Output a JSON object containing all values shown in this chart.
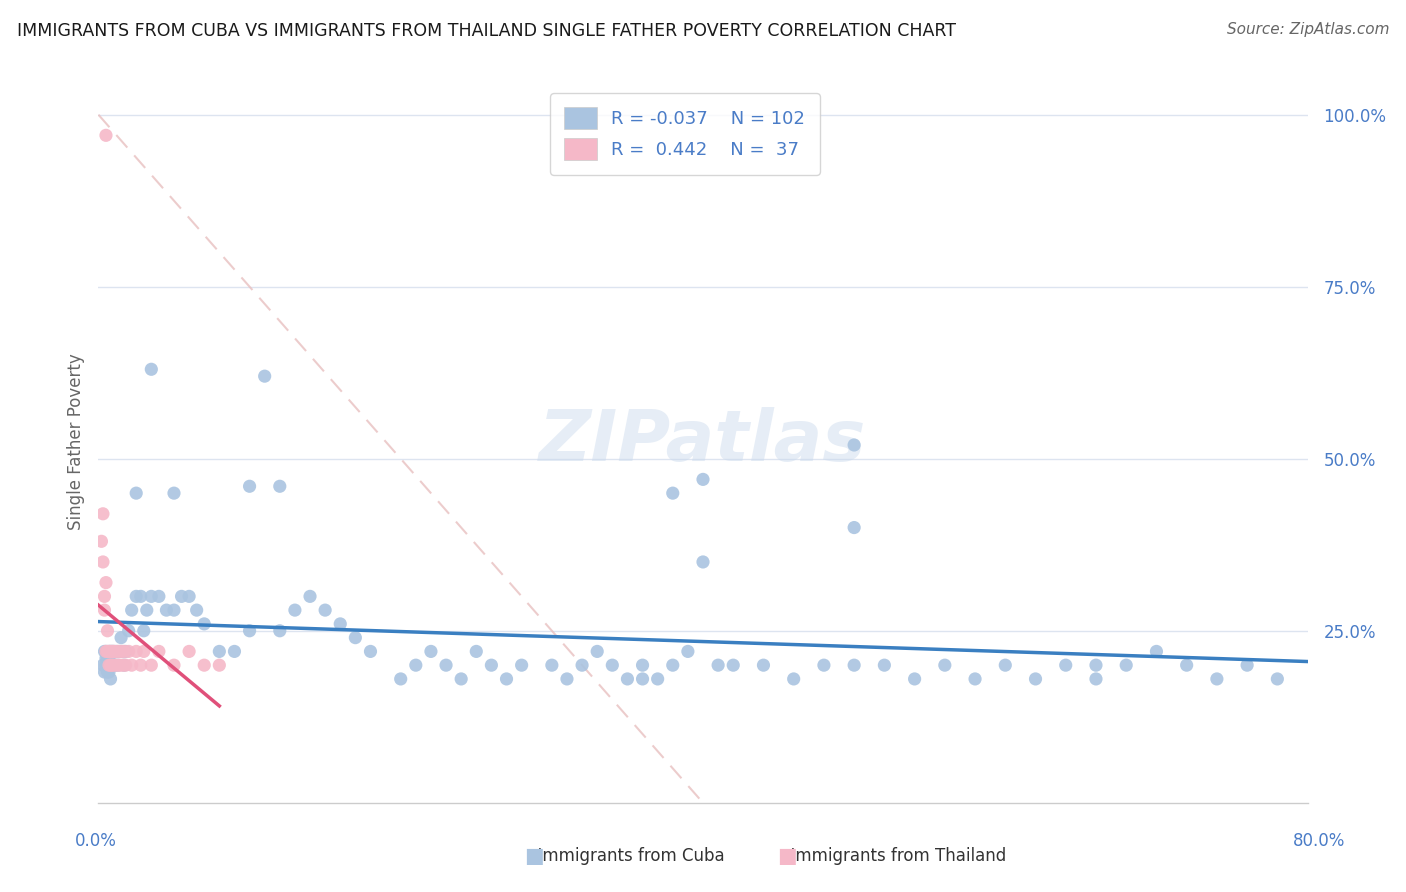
{
  "title": "IMMIGRANTS FROM CUBA VS IMMIGRANTS FROM THAILAND SINGLE FATHER POVERTY CORRELATION CHART",
  "source": "Source: ZipAtlas.com",
  "ylabel": "Single Father Poverty",
  "xlim": [
    0.0,
    0.8
  ],
  "ylim": [
    0.0,
    1.05
  ],
  "legend_r_cuba": "-0.037",
  "legend_n_cuba": "102",
  "legend_r_thailand": "0.442",
  "legend_n_thailand": "37",
  "cuba_color": "#aac4e0",
  "thailand_color": "#f5b8c8",
  "cuba_line_color": "#3a7fc1",
  "thailand_line_color": "#e0507a",
  "diag_color": "#e8c0c0",
  "grid_color": "#dde4f0",
  "ytick_color": "#4a7cc7",
  "cuba_x": [
    0.003,
    0.004,
    0.004,
    0.005,
    0.005,
    0.005,
    0.006,
    0.006,
    0.007,
    0.007,
    0.007,
    0.008,
    0.008,
    0.008,
    0.009,
    0.009,
    0.01,
    0.01,
    0.011,
    0.012,
    0.013,
    0.014,
    0.015,
    0.016,
    0.017,
    0.018,
    0.02,
    0.022,
    0.025,
    0.028,
    0.03,
    0.032,
    0.035,
    0.04,
    0.045,
    0.05,
    0.055,
    0.06,
    0.065,
    0.07,
    0.08,
    0.09,
    0.1,
    0.11,
    0.12,
    0.13,
    0.14,
    0.15,
    0.16,
    0.17,
    0.18,
    0.2,
    0.21,
    0.22,
    0.23,
    0.24,
    0.25,
    0.26,
    0.27,
    0.28,
    0.3,
    0.31,
    0.32,
    0.33,
    0.34,
    0.35,
    0.36,
    0.37,
    0.38,
    0.39,
    0.4,
    0.41,
    0.42,
    0.44,
    0.46,
    0.48,
    0.5,
    0.52,
    0.54,
    0.56,
    0.58,
    0.6,
    0.62,
    0.64,
    0.66,
    0.68,
    0.7,
    0.72,
    0.74,
    0.76,
    0.78,
    0.1,
    0.38,
    0.5,
    0.025,
    0.035,
    0.05,
    0.12,
    0.36,
    0.4,
    0.5,
    0.66
  ],
  "cuba_y": [
    0.2,
    0.22,
    0.19,
    0.21,
    0.2,
    0.22,
    0.19,
    0.21,
    0.22,
    0.19,
    0.21,
    0.2,
    0.22,
    0.18,
    0.2,
    0.22,
    0.2,
    0.22,
    0.2,
    0.22,
    0.2,
    0.22,
    0.24,
    0.22,
    0.2,
    0.22,
    0.25,
    0.28,
    0.3,
    0.3,
    0.25,
    0.28,
    0.3,
    0.3,
    0.28,
    0.28,
    0.3,
    0.3,
    0.28,
    0.26,
    0.22,
    0.22,
    0.25,
    0.62,
    0.25,
    0.28,
    0.3,
    0.28,
    0.26,
    0.24,
    0.22,
    0.18,
    0.2,
    0.22,
    0.2,
    0.18,
    0.22,
    0.2,
    0.18,
    0.2,
    0.2,
    0.18,
    0.2,
    0.22,
    0.2,
    0.18,
    0.2,
    0.18,
    0.2,
    0.22,
    0.47,
    0.2,
    0.2,
    0.2,
    0.18,
    0.2,
    0.52,
    0.2,
    0.18,
    0.2,
    0.18,
    0.2,
    0.18,
    0.2,
    0.18,
    0.2,
    0.22,
    0.2,
    0.18,
    0.2,
    0.18,
    0.46,
    0.45,
    0.2,
    0.45,
    0.63,
    0.45,
    0.46,
    0.18,
    0.35,
    0.4,
    0.2
  ],
  "thailand_x": [
    0.002,
    0.003,
    0.003,
    0.004,
    0.004,
    0.005,
    0.005,
    0.006,
    0.006,
    0.007,
    0.007,
    0.008,
    0.008,
    0.009,
    0.009,
    0.01,
    0.01,
    0.011,
    0.012,
    0.013,
    0.014,
    0.015,
    0.016,
    0.017,
    0.018,
    0.02,
    0.022,
    0.025,
    0.028,
    0.03,
    0.035,
    0.04,
    0.05,
    0.06,
    0.07,
    0.08,
    0.005
  ],
  "thailand_y": [
    0.38,
    0.42,
    0.35,
    0.3,
    0.28,
    0.32,
    0.22,
    0.22,
    0.25,
    0.22,
    0.2,
    0.22,
    0.2,
    0.22,
    0.2,
    0.22,
    0.2,
    0.22,
    0.2,
    0.22,
    0.2,
    0.22,
    0.2,
    0.22,
    0.2,
    0.22,
    0.2,
    0.22,
    0.2,
    0.22,
    0.2,
    0.22,
    0.2,
    0.22,
    0.2,
    0.2,
    0.97
  ]
}
